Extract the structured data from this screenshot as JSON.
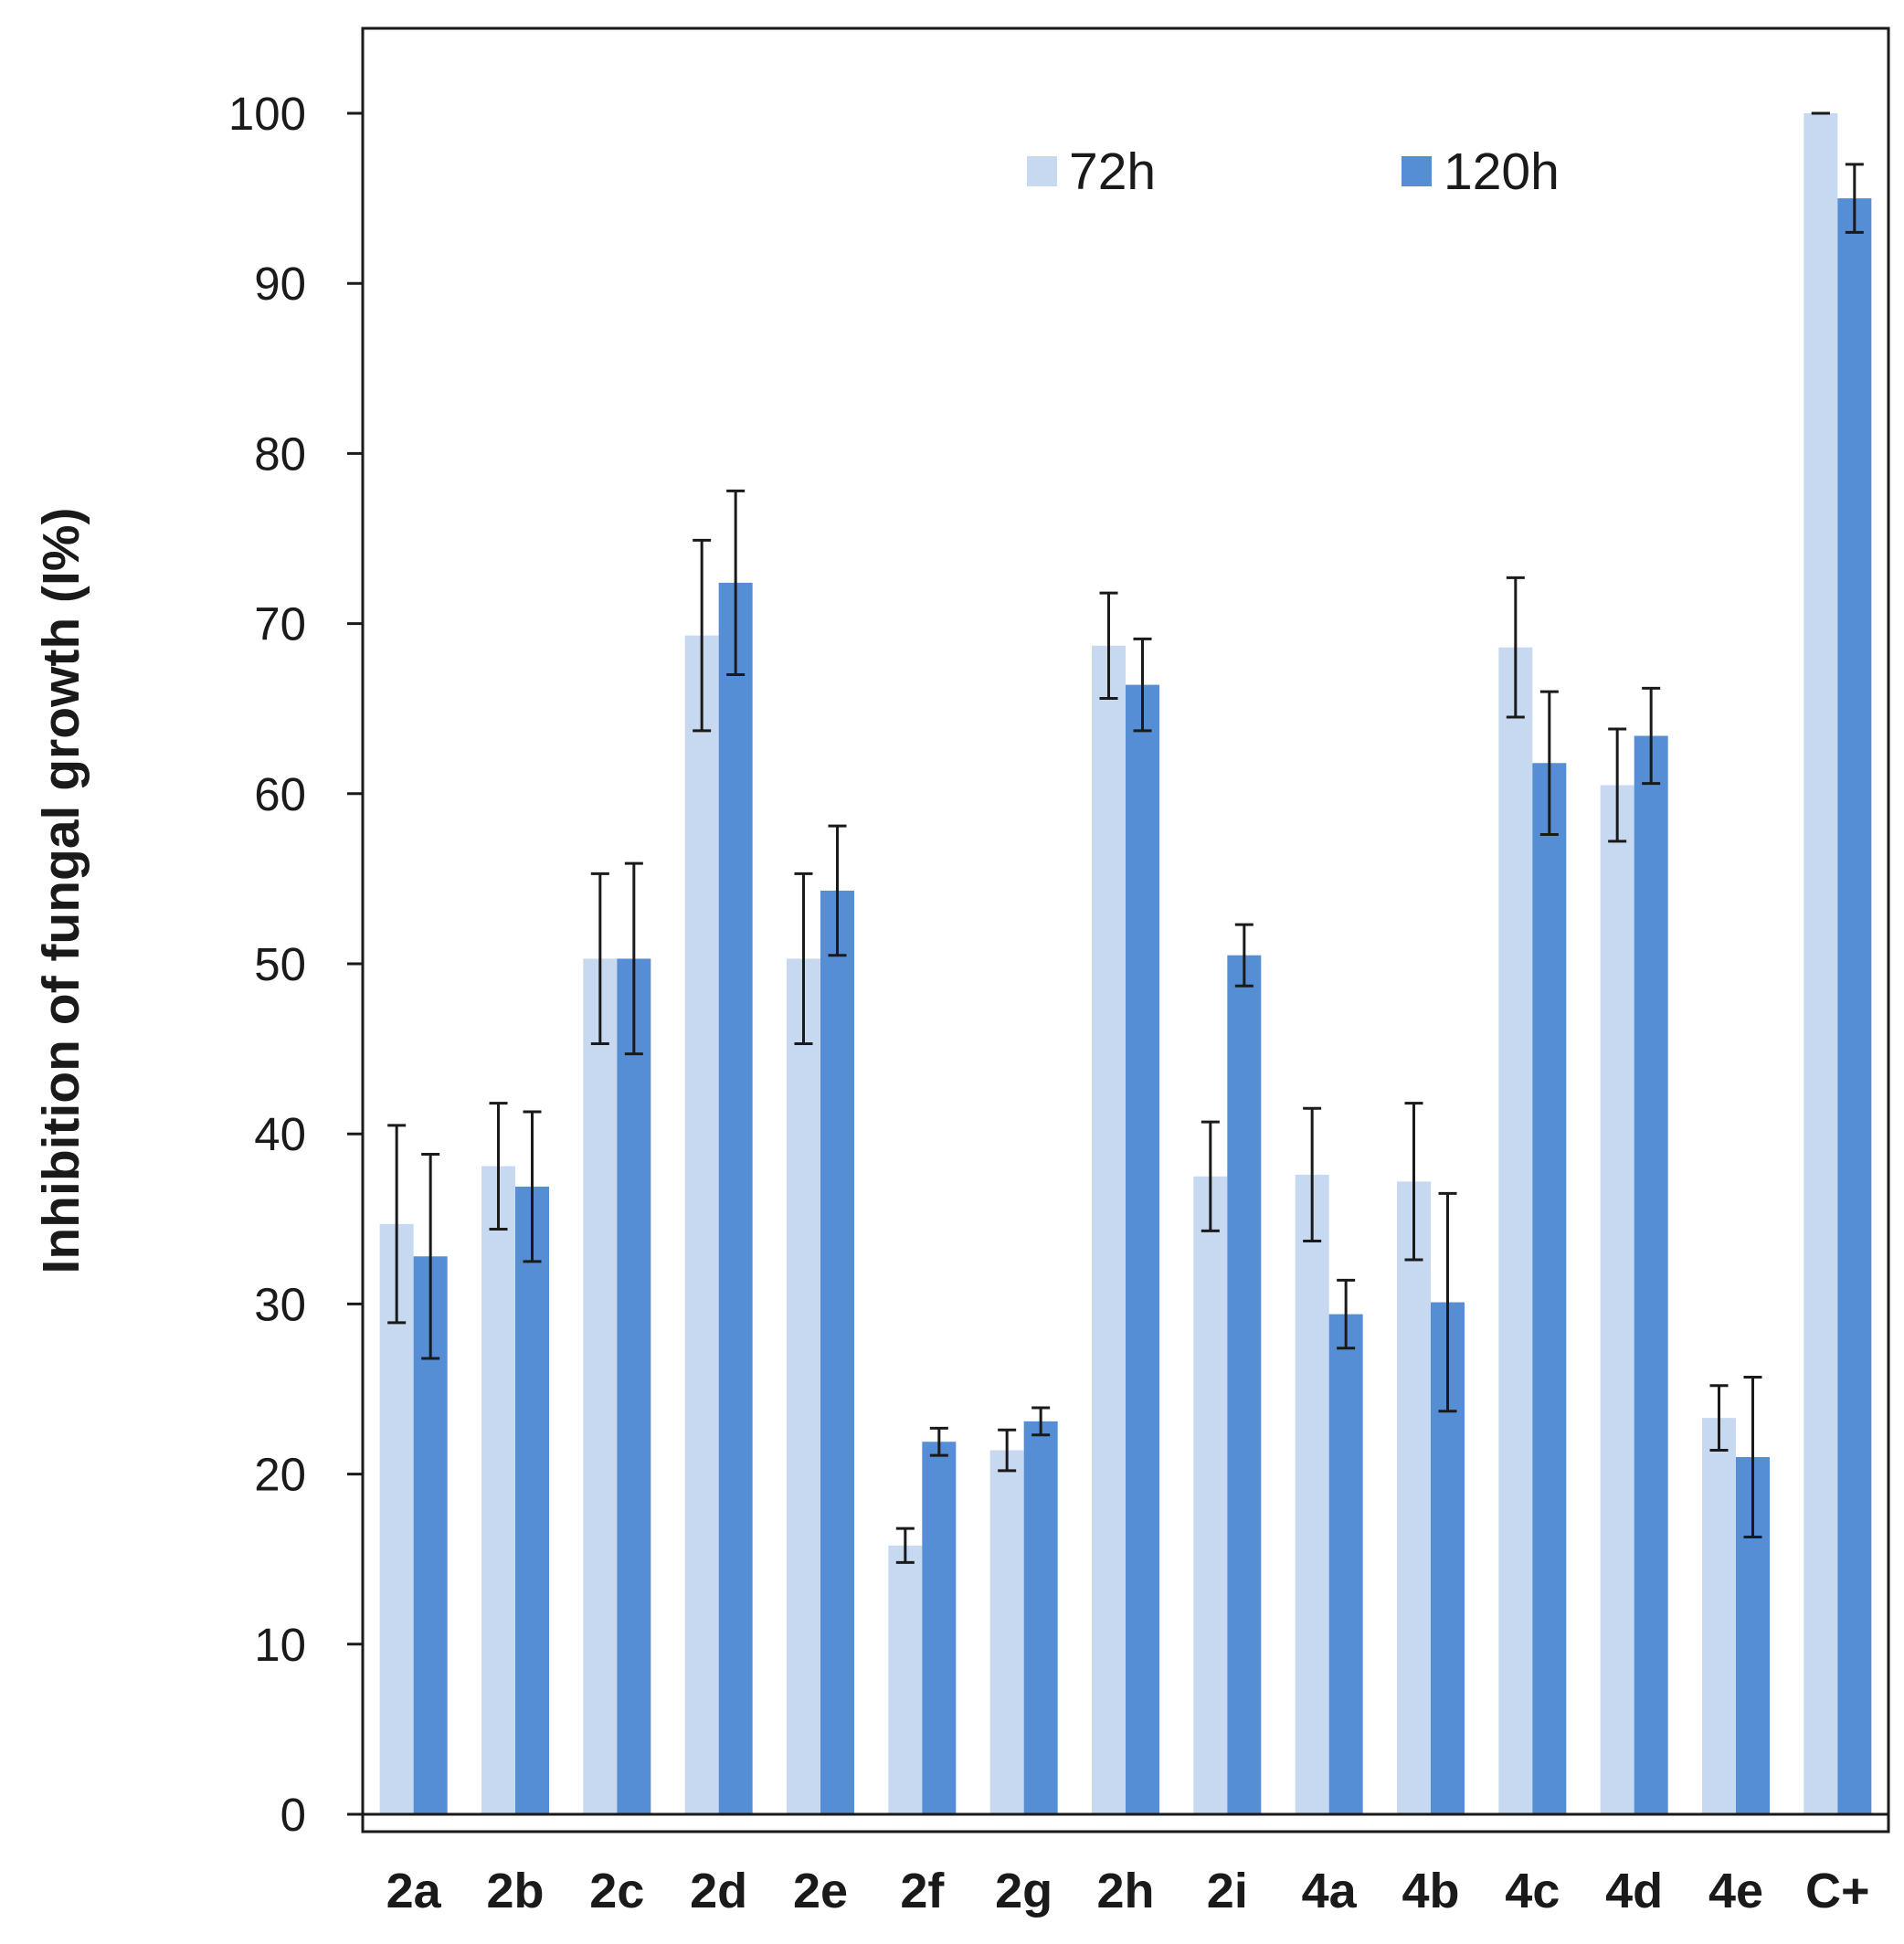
{
  "chart_data": {
    "type": "bar",
    "title": "",
    "xlabel": "",
    "ylabel": "Inhibition of fungal growth (I%)",
    "ylim": [
      0,
      100
    ],
    "yticks": [
      "0",
      "10",
      "20",
      "30",
      "40",
      "50",
      "60",
      "70",
      "80",
      "90",
      "100"
    ],
    "categories": [
      "2a",
      "2b",
      "2c",
      "2d",
      "2e",
      "2f",
      "2g",
      "2h",
      "2i",
      "4a",
      "4b",
      "4c",
      "4d",
      "4e",
      "C+"
    ],
    "series": [
      {
        "name": "72h",
        "color": "#c6d9f1",
        "values": [
          34.7,
          38.1,
          50.3,
          69.3,
          50.3,
          15.8,
          21.4,
          68.7,
          37.5,
          37.6,
          37.2,
          68.6,
          60.5,
          23.3,
          100
        ],
        "errors": [
          5.8,
          3.7,
          5.0,
          5.6,
          5.0,
          1.0,
          1.2,
          3.1,
          3.2,
          3.9,
          4.6,
          4.1,
          3.3,
          1.9,
          0
        ]
      },
      {
        "name": "120h",
        "color": "#558ed5",
        "values": [
          32.8,
          36.9,
          50.3,
          72.4,
          54.3,
          21.9,
          23.1,
          66.4,
          50.5,
          29.4,
          30.1,
          61.8,
          63.4,
          21.0,
          95.0
        ],
        "errors": [
          6.0,
          4.4,
          5.6,
          5.4,
          3.8,
          0.8,
          0.8,
          2.7,
          1.8,
          2.0,
          6.4,
          4.2,
          2.8,
          4.7,
          2.0
        ]
      }
    ],
    "legend": {
      "position": "top-center",
      "entries": [
        "72h",
        "120h"
      ]
    },
    "grid": false
  }
}
